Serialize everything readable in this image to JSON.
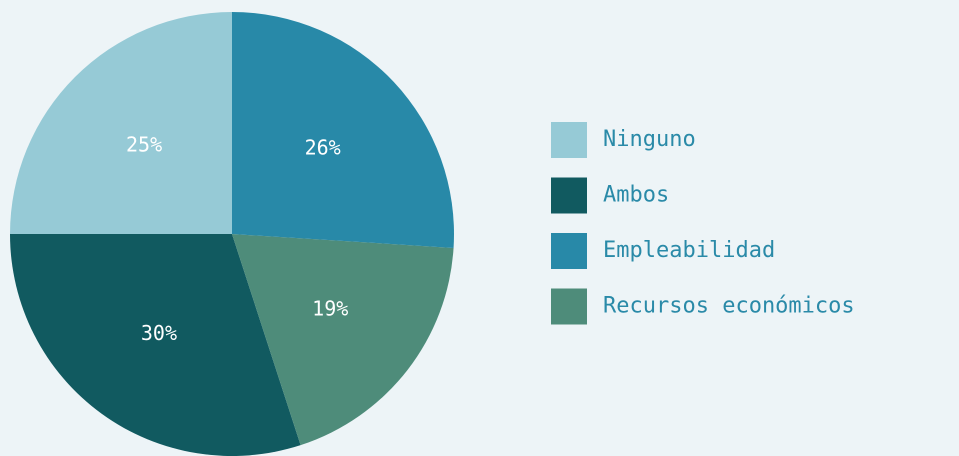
{
  "chart_data": {
    "type": "pie",
    "categories": [
      "Ninguno",
      "Ambos",
      "Empleabilidad",
      "Recursos económicos"
    ],
    "values": [
      25,
      30,
      26,
      19
    ],
    "value_labels": [
      "25%",
      "30%",
      "26%",
      "19%"
    ],
    "colors": [
      "#96cad6",
      "#115a60",
      "#2889a8",
      "#4e8c7a"
    ],
    "legend": "right"
  }
}
